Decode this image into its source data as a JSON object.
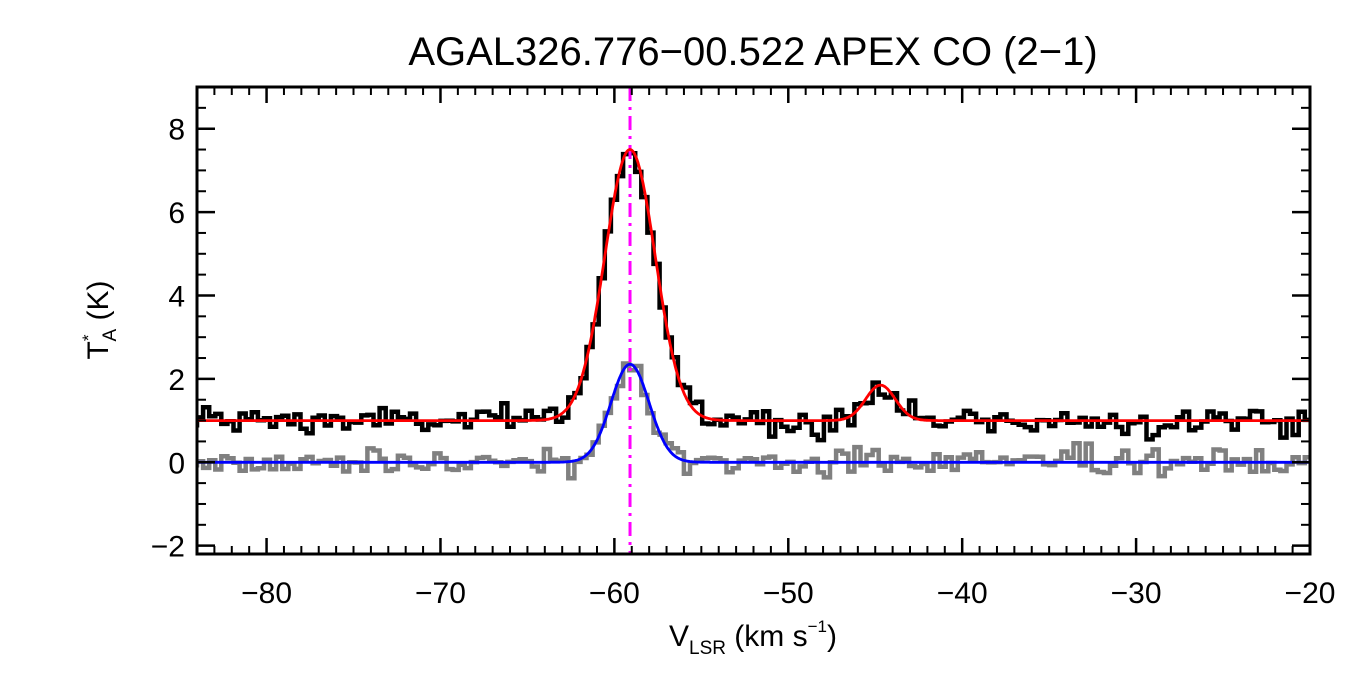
{
  "chart_data": {
    "type": "line",
    "title": "AGAL326.776−00.522  APEX CO (2−1)",
    "xlabel": {
      "main": "V",
      "sub": "LSR",
      "unit_before": " (km s",
      "sup": "−1",
      "unit_after": ")"
    },
    "ylabel": {
      "main": "T",
      "sup": "*",
      "sub": "A",
      "unit": " (K)"
    },
    "xlim": [
      -84,
      -20
    ],
    "ylim": [
      -2.2,
      9.0
    ],
    "x_ticks": [
      -80,
      -70,
      -60,
      -50,
      -40,
      -30,
      -20
    ],
    "x_tick_labels": [
      "−80",
      "−70",
      "−60",
      "−50",
      "−40",
      "−30",
      "−20"
    ],
    "y_ticks": [
      -2,
      0,
      2,
      4,
      6,
      8
    ],
    "y_tick_labels": [
      "−2",
      "0",
      "2",
      "4",
      "6",
      "8"
    ],
    "grid": false,
    "reference_line": {
      "x": -59.1,
      "color": "#ff00ff",
      "style": "dash-dot"
    },
    "series": [
      {
        "style": "histogram",
        "color": "#000000",
        "baseline_offset": 1.0,
        "components": [
          {
            "center": -59.1,
            "amplitude": 6.45,
            "sigma": 1.45
          },
          {
            "center": -44.7,
            "amplitude": 0.85,
            "sigma": 0.85
          }
        ],
        "noise_rms": 0.17,
        "channel_width": 0.35
      },
      {
        "style": "histogram",
        "color": "#808080",
        "baseline_offset": 0.0,
        "components": [
          {
            "center": -59.1,
            "amplitude": 2.3,
            "sigma": 1.1
          }
        ],
        "noise_rms": 0.17,
        "channel_width": 0.35
      },
      {
        "style": "fit",
        "color": "#ff0000",
        "baseline_offset": 1.0,
        "components": [
          {
            "center": -59.1,
            "amplitude": 6.5,
            "sigma": 1.45
          },
          {
            "center": -44.7,
            "amplitude": 0.85,
            "sigma": 0.85
          }
        ]
      },
      {
        "style": "fit",
        "color": "#0000ff",
        "baseline_offset": 0.0,
        "components": [
          {
            "center": -59.1,
            "amplitude": 2.35,
            "sigma": 1.1
          }
        ]
      }
    ]
  }
}
